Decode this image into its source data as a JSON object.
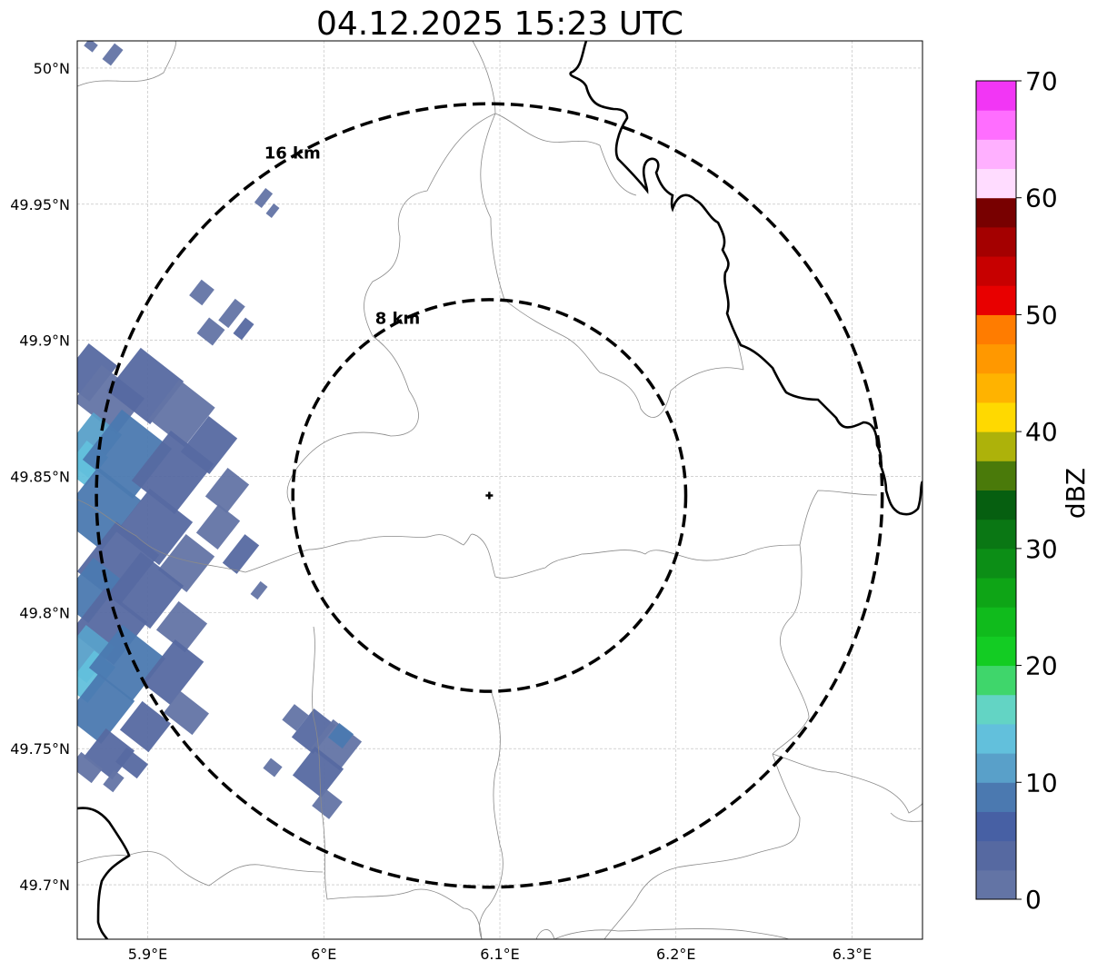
{
  "title": "04.12.2025 15:23 UTC",
  "map": {
    "x_ticks": [
      "5.9°E",
      "6°E",
      "6.1°E",
      "6.2°E",
      "6.3°E"
    ],
    "y_ticks": [
      "50°N",
      "49.95°N",
      "49.9°N",
      "49.85°N",
      "49.8°N",
      "49.75°N",
      "49.7°N"
    ],
    "lon_range": [
      5.86,
      6.34
    ],
    "lat_range": [
      49.68,
      50.01
    ],
    "grid": true,
    "radar_center": {
      "lon": 6.094,
      "lat": 49.843
    },
    "range_rings": [
      {
        "label": "8 km",
        "radius_km": 8
      },
      {
        "label": "16 km",
        "radius_km": 16
      }
    ]
  },
  "colorbar": {
    "label": "dBZ",
    "ticks": [
      "0",
      "10",
      "20",
      "30",
      "40",
      "50",
      "60",
      "70"
    ],
    "range": [
      0,
      70
    ],
    "step": 2.5,
    "colors": [
      "#6374a5",
      "#5669a1",
      "#4760a4",
      "#4b79b0",
      "#59a0c9",
      "#62c0dc",
      "#63d4c4",
      "#3fd66b",
      "#13cc23",
      "#10bb1c",
      "#0ea516",
      "#0c8e16",
      "#0a7714",
      "#065f10",
      "#4a7a0a",
      "#adb20a",
      "#ffd900",
      "#ffb300",
      "#ff9800",
      "#ff7c00",
      "#e80000",
      "#c70000",
      "#a40000",
      "#780000",
      "#ffdcff",
      "#ffb0ff",
      "#ff6eff",
      "#f236f5"
    ]
  },
  "precip_colors": [
    "#6374a5",
    "#5669a1",
    "#4b79b0",
    "#59a0c9",
    "#62c0dc"
  ]
}
